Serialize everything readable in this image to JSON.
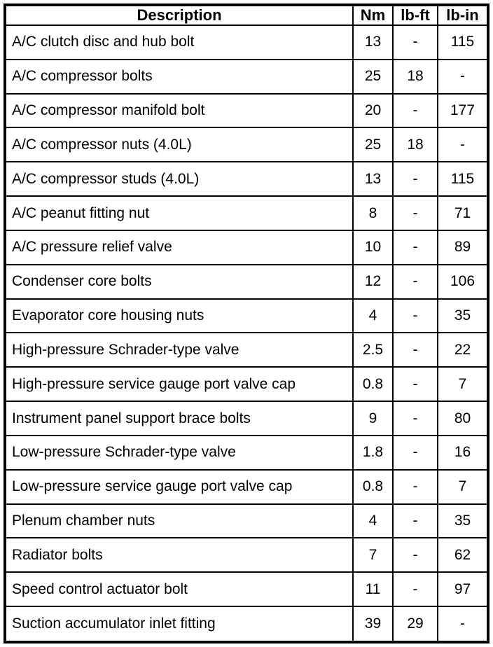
{
  "colors": {
    "border": "#000000",
    "background": "#ffffff",
    "text": "#000000"
  },
  "table": {
    "columns": [
      "Description",
      "Nm",
      "lb-ft",
      "lb-in"
    ],
    "rows": [
      {
        "description": "A/C clutch disc and hub bolt",
        "nm": "13",
        "lb_ft": "-",
        "lb_in": "115"
      },
      {
        "description": "A/C compressor bolts",
        "nm": "25",
        "lb_ft": "18",
        "lb_in": "-"
      },
      {
        "description": "A/C compressor manifold bolt",
        "nm": "20",
        "lb_ft": "-",
        "lb_in": "177"
      },
      {
        "description": "A/C compressor nuts (4.0L)",
        "nm": "25",
        "lb_ft": "18",
        "lb_in": "-"
      },
      {
        "description": "A/C compressor studs (4.0L)",
        "nm": "13",
        "lb_ft": "-",
        "lb_in": "115"
      },
      {
        "description": "A/C peanut fitting nut",
        "nm": "8",
        "lb_ft": "-",
        "lb_in": "71"
      },
      {
        "description": "A/C pressure relief valve",
        "nm": "10",
        "lb_ft": "-",
        "lb_in": "89"
      },
      {
        "description": "Condenser core bolts",
        "nm": "12",
        "lb_ft": "-",
        "lb_in": "106"
      },
      {
        "description": "Evaporator core housing nuts",
        "nm": "4",
        "lb_ft": "-",
        "lb_in": "35"
      },
      {
        "description": "High-pressure Schrader-type valve",
        "nm": "2.5",
        "lb_ft": "-",
        "lb_in": "22"
      },
      {
        "description": "High-pressure service gauge port valve cap",
        "nm": "0.8",
        "lb_ft": "-",
        "lb_in": "7"
      },
      {
        "description": "Instrument panel support brace bolts",
        "nm": "9",
        "lb_ft": "-",
        "lb_in": "80"
      },
      {
        "description": "Low-pressure Schrader-type valve",
        "nm": "1.8",
        "lb_ft": "-",
        "lb_in": "16"
      },
      {
        "description": "Low-pressure service gauge port valve cap",
        "nm": "0.8",
        "lb_ft": "-",
        "lb_in": "7"
      },
      {
        "description": "Plenum chamber nuts",
        "nm": "4",
        "lb_ft": "-",
        "lb_in": "35"
      },
      {
        "description": "Radiator bolts",
        "nm": "7",
        "lb_ft": "-",
        "lb_in": "62"
      },
      {
        "description": "Speed control actuator bolt",
        "nm": "11",
        "lb_ft": "-",
        "lb_in": "97"
      },
      {
        "description": "Suction accumulator inlet fitting",
        "nm": "39",
        "lb_ft": "29",
        "lb_in": "-"
      }
    ]
  }
}
